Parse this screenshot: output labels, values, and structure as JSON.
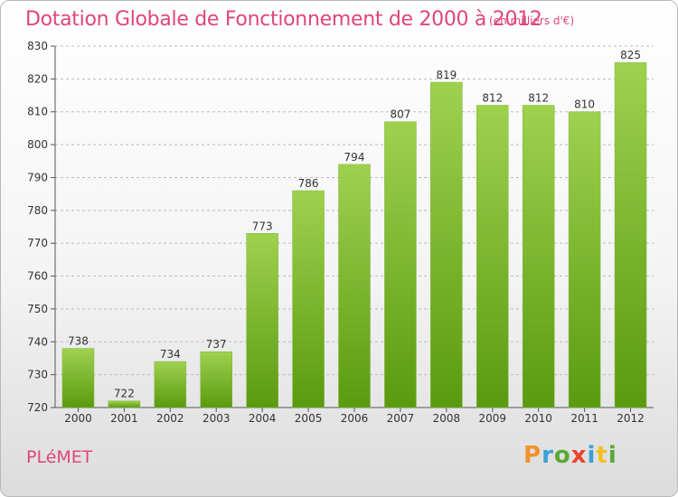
{
  "title": "Dotation Globale de Fonctionnement de 2000 à 2012",
  "subtitle": "(en milliers d'€)",
  "commune": "PLéMET",
  "logo": {
    "letters": [
      "P",
      "r",
      "o",
      "x",
      "i",
      "t",
      "i"
    ],
    "colors": [
      "#f0932b",
      "#3aa0d8",
      "#5aa832",
      "#e8452c",
      "#3aa0d8",
      "#f0c020",
      "#5aa832"
    ]
  },
  "colors": {
    "accent": "#e0457b",
    "bar_top": "#9fd14f",
    "bar_bottom": "#5a9a10",
    "grid": "#bcbcbc"
  },
  "chart_data": {
    "type": "bar",
    "title": "Dotation Globale de Fonctionnement de 2000 à 2012",
    "subtitle": "(en milliers d'€)",
    "categories": [
      "2000",
      "2001",
      "2002",
      "2003",
      "2004",
      "2005",
      "2006",
      "2007",
      "2008",
      "2009",
      "2010",
      "2011",
      "2012"
    ],
    "values": [
      738,
      722,
      734,
      737,
      773,
      786,
      794,
      807,
      819,
      812,
      812,
      810,
      825
    ],
    "ylim": [
      720,
      830
    ],
    "yticks": [
      720,
      730,
      740,
      750,
      760,
      770,
      780,
      790,
      800,
      810,
      820,
      830
    ],
    "grid": "horizontal dashed",
    "legend": "none"
  }
}
